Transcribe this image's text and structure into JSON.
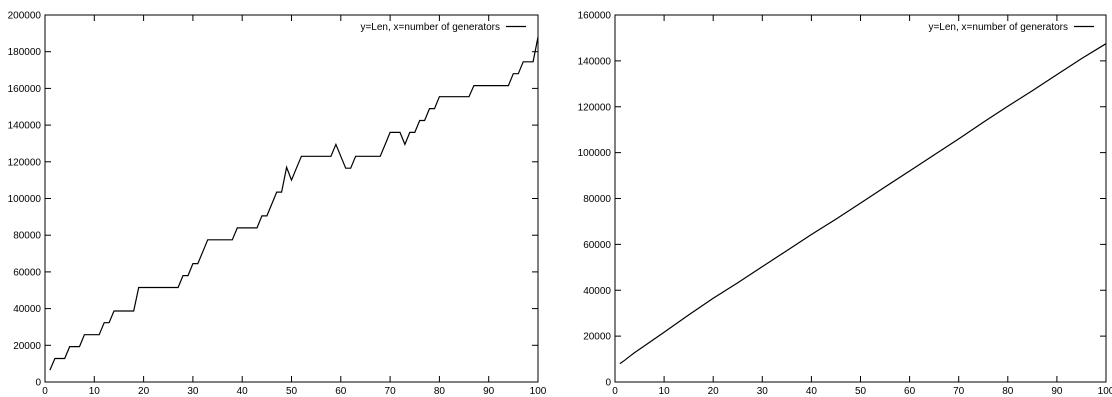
{
  "chart_data": [
    {
      "type": "line",
      "title": "",
      "xlabel": "",
      "ylabel": "",
      "xlim": [
        0,
        100
      ],
      "ylim": [
        0,
        200000
      ],
      "xticks": [
        "0",
        "10",
        "20",
        "30",
        "40",
        "50",
        "60",
        "70",
        "80",
        "90",
        "100"
      ],
      "yticks": [
        "0",
        "20000",
        "40000",
        "60000",
        "80000",
        "100000",
        "120000",
        "140000",
        "160000",
        "180000",
        "200000"
      ],
      "grid": false,
      "legend_position": "top-right",
      "series": [
        {
          "name": "y=Len, x=number of generators",
          "color": "#000000",
          "points": [
            [
              1,
              6500
            ],
            [
              2,
              12800
            ],
            [
              3,
              12800
            ],
            [
              4,
              12800
            ],
            [
              5,
              19300
            ],
            [
              6,
              19300
            ],
            [
              7,
              19300
            ],
            [
              8,
              25800
            ],
            [
              9,
              25800
            ],
            [
              10,
              25800
            ],
            [
              11,
              25800
            ],
            [
              12,
              32300
            ],
            [
              13,
              32300
            ],
            [
              14,
              38700
            ],
            [
              15,
              38700
            ],
            [
              16,
              38700
            ],
            [
              17,
              38700
            ],
            [
              18,
              38700
            ],
            [
              19,
              51500
            ],
            [
              20,
              51500
            ],
            [
              21,
              51500
            ],
            [
              22,
              51500
            ],
            [
              23,
              51500
            ],
            [
              24,
              51500
            ],
            [
              25,
              51500
            ],
            [
              26,
              51500
            ],
            [
              27,
              51500
            ],
            [
              28,
              58000
            ],
            [
              29,
              58000
            ],
            [
              30,
              64500
            ],
            [
              31,
              64500
            ],
            [
              32,
              71000
            ],
            [
              33,
              77500
            ],
            [
              34,
              77500
            ],
            [
              35,
              77500
            ],
            [
              36,
              77500
            ],
            [
              37,
              77500
            ],
            [
              38,
              77500
            ],
            [
              39,
              84000
            ],
            [
              40,
              84000
            ],
            [
              41,
              84000
            ],
            [
              42,
              84000
            ],
            [
              43,
              84000
            ],
            [
              44,
              90500
            ],
            [
              45,
              90500
            ],
            [
              46,
              97000
            ],
            [
              47,
              103500
            ],
            [
              48,
              103500
            ],
            [
              49,
              117000
            ],
            [
              50,
              110000
            ],
            [
              51,
              116500
            ],
            [
              52,
              123000
            ],
            [
              53,
              123000
            ],
            [
              54,
              123000
            ],
            [
              55,
              123000
            ],
            [
              56,
              123000
            ],
            [
              57,
              123000
            ],
            [
              58,
              123000
            ],
            [
              59,
              129500
            ],
            [
              60,
              123000
            ],
            [
              61,
              116500
            ],
            [
              62,
              116500
            ],
            [
              63,
              123000
            ],
            [
              64,
              123000
            ],
            [
              65,
              123000
            ],
            [
              66,
              123000
            ],
            [
              67,
              123000
            ],
            [
              68,
              123000
            ],
            [
              69,
              129500
            ],
            [
              70,
              136000
            ],
            [
              71,
              136000
            ],
            [
              72,
              136000
            ],
            [
              73,
              129500
            ],
            [
              74,
              136000
            ],
            [
              75,
              136000
            ],
            [
              76,
              142500
            ],
            [
              77,
              142500
            ],
            [
              78,
              149000
            ],
            [
              79,
              149000
            ],
            [
              80,
              155500
            ],
            [
              81,
              155500
            ],
            [
              82,
              155500
            ],
            [
              83,
              155500
            ],
            [
              84,
              155500
            ],
            [
              85,
              155500
            ],
            [
              86,
              155500
            ],
            [
              87,
              161500
            ],
            [
              88,
              161500
            ],
            [
              89,
              161500
            ],
            [
              90,
              161500
            ],
            [
              91,
              161500
            ],
            [
              92,
              161500
            ],
            [
              93,
              161500
            ],
            [
              94,
              161500
            ],
            [
              95,
              168000
            ],
            [
              96,
              168000
            ],
            [
              97,
              174500
            ],
            [
              98,
              174500
            ],
            [
              99,
              174500
            ],
            [
              100,
              188000
            ]
          ]
        }
      ]
    },
    {
      "type": "line",
      "title": "",
      "xlabel": "",
      "ylabel": "",
      "xlim": [
        0,
        100
      ],
      "ylim": [
        0,
        160000
      ],
      "xticks": [
        "0",
        "10",
        "20",
        "30",
        "40",
        "50",
        "60",
        "70",
        "80",
        "90",
        "100"
      ],
      "yticks": [
        "0",
        "20000",
        "40000",
        "60000",
        "80000",
        "100000",
        "120000",
        "140000",
        "160000"
      ],
      "grid": false,
      "legend_position": "top-right",
      "series": [
        {
          "name": "y=Len, x=number of generators",
          "color": "#000000",
          "points": [
            [
              1,
              8000
            ],
            [
              2,
              9500
            ],
            [
              3,
              11200
            ],
            [
              4,
              12800
            ],
            [
              5,
              14300
            ],
            [
              10,
              21700
            ],
            [
              15,
              29200
            ],
            [
              20,
              36500
            ],
            [
              25,
              43300
            ],
            [
              30,
              50300
            ],
            [
              35,
              57300
            ],
            [
              40,
              64300
            ],
            [
              45,
              71000
            ],
            [
              50,
              78000
            ],
            [
              55,
              85000
            ],
            [
              60,
              92000
            ],
            [
              65,
              99000
            ],
            [
              70,
              106000
            ],
            [
              75,
              113200
            ],
            [
              80,
              120200
            ],
            [
              85,
              127000
            ],
            [
              90,
              134000
            ],
            [
              95,
              141000
            ],
            [
              100,
              147500
            ]
          ]
        }
      ]
    }
  ]
}
